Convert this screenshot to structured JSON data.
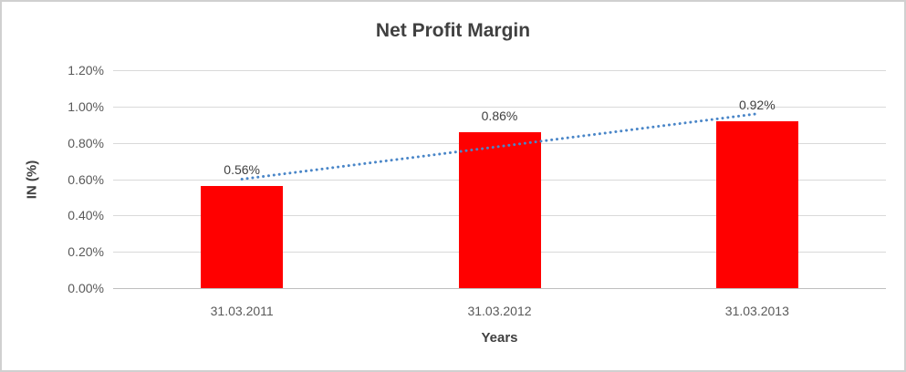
{
  "chart_data": {
    "type": "bar",
    "title": "Net Profit Margin",
    "categories": [
      "31.03.2011",
      "31.03.2012",
      "31.03.2013"
    ],
    "values": [
      0.56,
      0.86,
      0.92
    ],
    "data_labels": [
      "0.56%",
      "0.86%",
      "0.92%"
    ],
    "xlabel": "Years",
    "ylabel": "IN (%)",
    "ylim": [
      0,
      1.2
    ],
    "y_ticks": [
      "1.20%",
      "1.00%",
      "0.80%",
      "0.60%",
      "0.40%",
      "0.20%",
      "0.00%"
    ],
    "grid": "horizontal",
    "legend": "none",
    "trendline": {
      "type": "linear",
      "style": "dotted"
    },
    "colors": {
      "bar": "#FF0000",
      "trendline": "#4A86C8",
      "gridline": "#D9D9D9",
      "axis_line": "#BFBFBF",
      "title_text": "#404040",
      "tick_text": "#595959",
      "frame_border": "#D0D0D0"
    }
  }
}
